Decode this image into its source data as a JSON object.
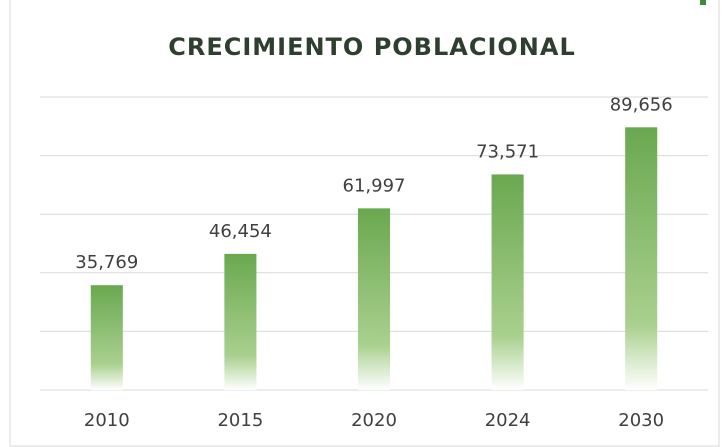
{
  "chart_data": {
    "type": "bar",
    "title": "CRECIMIENTO POBLACIONAL",
    "categories": [
      "2010",
      "2015",
      "2020",
      "2024",
      "2030"
    ],
    "values": [
      35769,
      46454,
      61997,
      73571,
      89656
    ],
    "value_labels": [
      "35,769",
      "46,454",
      "61,997",
      "73,571",
      "89,656"
    ],
    "color": "#6aa84f",
    "ylim": [
      0,
      100000
    ],
    "yticks": [
      0,
      20000,
      40000,
      60000,
      80000,
      100000
    ],
    "grid": true
  }
}
